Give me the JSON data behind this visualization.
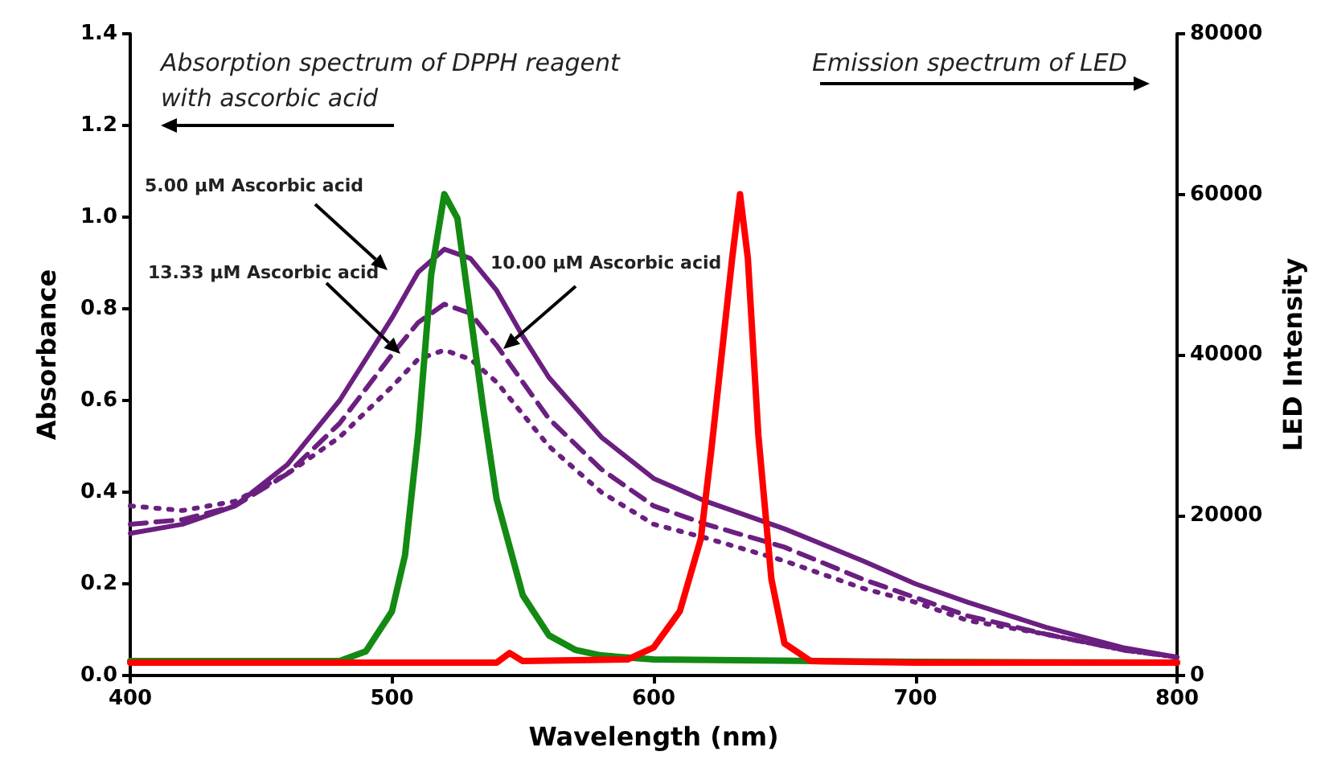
{
  "chart_data": {
    "type": "line",
    "xlabel": "Wavelength (nm)",
    "ylabel": "Absorbance",
    "y2label": "LED Intensity",
    "xlim": [
      400,
      800
    ],
    "xticks": [
      400,
      500,
      600,
      700,
      800
    ],
    "ylim": [
      0,
      1.4
    ],
    "yticks": [
      {
        "value": 0,
        "label": "0.0"
      },
      0.2,
      0.4,
      0.6,
      0.8,
      {
        "value": 1,
        "label": "1.0"
      },
      1.2,
      1.4
    ],
    "y2lim": [
      0,
      80000
    ],
    "y2ticks": [
      0,
      20000,
      40000,
      60000,
      80000
    ],
    "grid": false,
    "legend": false,
    "marker": "none",
    "annotations": [
      "Absorption spectrum of DPPH reagent with ascorbic acid",
      "Emission spectrum of LED"
    ],
    "series": [
      {
        "name": "5.00 µM Ascorbic acid",
        "color": "#6b1f80",
        "line_style": "solid",
        "x": [
          400,
          420,
          440,
          460,
          480,
          500,
          510,
          520,
          530,
          540,
          550,
          560,
          580,
          600,
          620,
          650,
          680,
          700,
          720,
          750,
          780,
          800
        ],
        "values": [
          0.31,
          0.33,
          0.37,
          0.46,
          0.6,
          0.78,
          0.88,
          0.93,
          0.91,
          0.84,
          0.74,
          0.65,
          0.52,
          0.43,
          0.38,
          0.32,
          0.25,
          0.2,
          0.16,
          0.105,
          0.06,
          0.04
        ]
      },
      {
        "name": "10.00 µM Ascorbic acid",
        "color": "#6b1f80",
        "line_style": "dashed",
        "x": [
          400,
          420,
          440,
          460,
          480,
          500,
          510,
          520,
          530,
          540,
          550,
          560,
          580,
          600,
          620,
          650,
          680,
          700,
          720,
          750,
          780,
          800
        ],
        "values": [
          0.33,
          0.34,
          0.37,
          0.44,
          0.55,
          0.7,
          0.77,
          0.81,
          0.79,
          0.72,
          0.64,
          0.56,
          0.45,
          0.37,
          0.33,
          0.28,
          0.21,
          0.17,
          0.13,
          0.09,
          0.055,
          0.04
        ]
      },
      {
        "name": "13.33 µM Ascorbic acid",
        "color": "#6b1f80",
        "line_style": "dotted",
        "x": [
          400,
          420,
          440,
          460,
          480,
          500,
          510,
          520,
          530,
          540,
          550,
          560,
          580,
          600,
          620,
          650,
          680,
          700,
          720,
          750,
          780,
          800
        ],
        "values": [
          0.37,
          0.36,
          0.38,
          0.44,
          0.52,
          0.63,
          0.69,
          0.71,
          0.69,
          0.64,
          0.57,
          0.5,
          0.4,
          0.33,
          0.3,
          0.25,
          0.19,
          0.16,
          0.12,
          0.09,
          0.055,
          0.04
        ]
      },
      {
        "color": "#138a13",
        "line_style": "solid",
        "axis": "y2",
        "x": [
          400,
          440,
          480,
          490,
          500,
          505,
          510,
          515,
          520,
          525,
          530,
          535,
          540,
          545,
          550,
          560,
          570,
          580,
          600,
          700,
          800
        ],
        "values": [
          1800,
          1800,
          1800,
          3000,
          8000,
          15000,
          30000,
          50000,
          60000,
          57000,
          45000,
          33000,
          22000,
          16000,
          10000,
          5000,
          3200,
          2500,
          2000,
          1700,
          1600
        ]
      },
      {
        "color": "#ff0000",
        "line_style": "solid",
        "axis": "y2",
        "x": [
          400,
          480,
          540,
          545,
          550,
          590,
          600,
          610,
          618,
          622,
          626,
          630,
          633,
          636,
          640,
          645,
          650,
          660,
          700,
          800
        ],
        "values": [
          1600,
          1600,
          1600,
          2800,
          1800,
          2000,
          3500,
          8000,
          17000,
          28000,
          40000,
          52000,
          60000,
          52000,
          30000,
          12000,
          4000,
          1800,
          1600,
          1600
        ]
      }
    ]
  }
}
